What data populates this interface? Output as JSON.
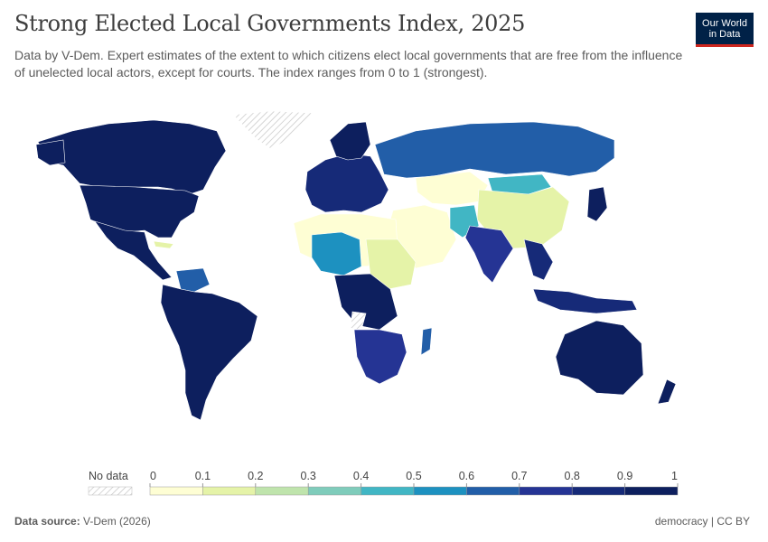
{
  "header": {
    "title": "Strong Elected Local Governments Index, 2025",
    "subtitle": "Data by V-Dem. Expert estimates of the extent to which citizens elect local governments that are free from the influence of unelected local actors, except for courts. The index ranges from 0 to 1 (strongest)."
  },
  "logo": {
    "line1": "Our World",
    "line2": "in Data"
  },
  "legend": {
    "no_data_label": "No data",
    "ticks": [
      "0",
      "0.1",
      "0.2",
      "0.3",
      "0.4",
      "0.5",
      "0.6",
      "0.7",
      "0.8",
      "0.9",
      "1"
    ],
    "colors": [
      "#fefed4",
      "#e5f3a8",
      "#bfe4ac",
      "#7fccbb",
      "#41b6c4",
      "#1d91c0",
      "#225ea8",
      "#253494",
      "#162a78",
      "#0d1f5e"
    ]
  },
  "footer": {
    "source_label": "Data source:",
    "source_value": "V-Dem (2026)",
    "license": "democracy | CC BY"
  }
}
